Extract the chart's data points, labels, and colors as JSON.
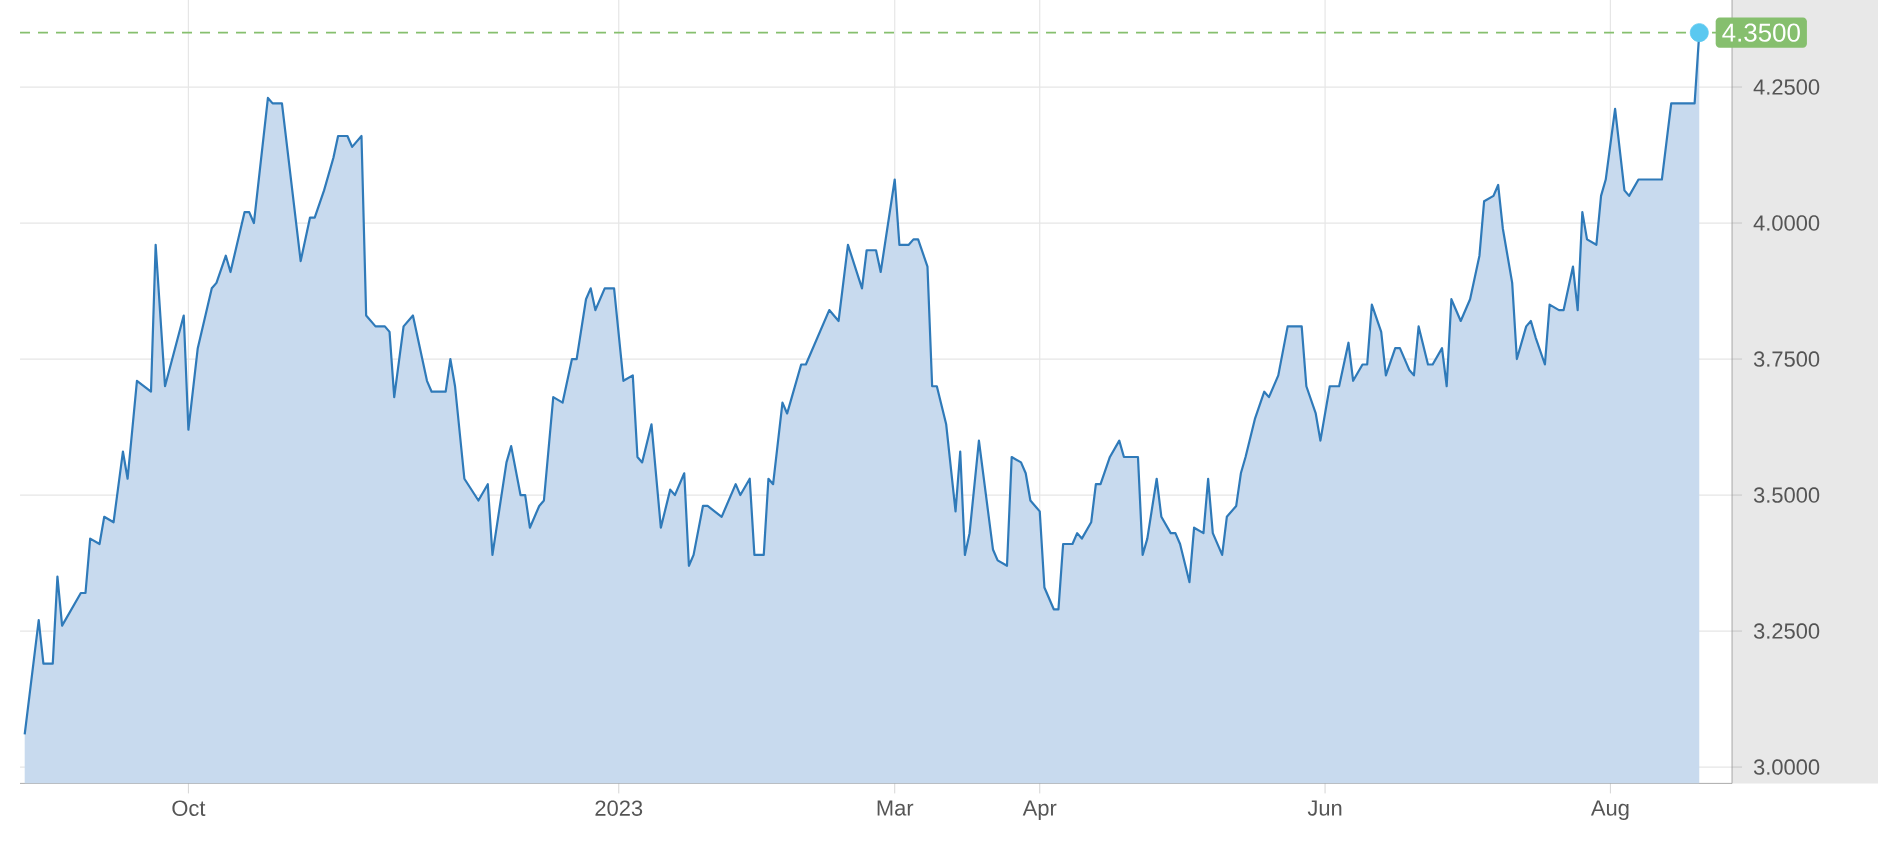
{
  "chart_data": {
    "type": "area",
    "color": "#2f7ab9",
    "x": [
      "2022-08-27",
      "2022-08-28",
      "2022-08-30",
      "2022-08-31",
      "2022-09-02",
      "2022-09-03",
      "2022-09-04",
      "2022-09-08",
      "2022-09-09",
      "2022-09-10",
      "2022-09-12",
      "2022-09-13",
      "2022-09-15",
      "2022-09-17",
      "2022-09-18",
      "2022-09-20",
      "2022-09-23",
      "2022-09-24",
      "2022-09-26",
      "2022-09-30",
      "2022-10-01",
      "2022-10-03",
      "2022-10-06",
      "2022-10-07",
      "2022-10-09",
      "2022-10-10",
      "2022-10-13",
      "2022-10-14",
      "2022-10-15",
      "2022-10-18",
      "2022-10-19",
      "2022-10-21",
      "2022-10-25",
      "2022-10-27",
      "2022-10-28",
      "2022-10-30",
      "2022-11-01",
      "2022-11-02",
      "2022-11-04",
      "2022-11-05",
      "2022-11-07",
      "2022-11-08",
      "2022-11-10",
      "2022-11-12",
      "2022-11-13",
      "2022-11-14",
      "2022-11-16",
      "2022-11-18",
      "2022-11-21",
      "2022-11-22",
      "2022-11-25",
      "2022-11-26",
      "2022-11-27",
      "2022-11-29",
      "2022-12-02",
      "2022-12-04",
      "2022-12-05",
      "2022-12-08",
      "2022-12-09",
      "2022-12-11",
      "2022-12-12",
      "2022-12-13",
      "2022-12-15",
      "2022-12-16",
      "2022-12-18",
      "2022-12-20",
      "2022-12-22",
      "2022-12-23",
      "2022-12-25",
      "2022-12-26",
      "2022-12-27",
      "2022-12-29",
      "2022-12-31",
      "2023-01-02",
      "2023-01-04",
      "2023-01-05",
      "2023-01-06",
      "2023-01-08",
      "2023-01-10",
      "2023-01-12",
      "2023-01-13",
      "2023-01-15",
      "2023-01-16",
      "2023-01-17",
      "2023-01-19",
      "2023-01-20",
      "2023-01-23",
      "2023-01-26",
      "2023-01-27",
      "2023-01-29",
      "2023-01-30",
      "2023-02-01",
      "2023-02-02",
      "2023-02-03",
      "2023-02-05",
      "2023-02-06",
      "2023-02-07",
      "2023-02-09",
      "2023-02-10",
      "2023-02-15",
      "2023-02-17",
      "2023-02-19",
      "2023-02-22",
      "2023-02-23",
      "2023-02-25",
      "2023-02-26",
      "2023-03-01",
      "2023-03-02",
      "2023-03-04",
      "2023-03-05",
      "2023-03-06",
      "2023-03-08",
      "2023-03-09",
      "2023-03-10",
      "2023-03-12",
      "2023-03-14",
      "2023-03-15",
      "2023-03-16",
      "2023-03-17",
      "2023-03-19",
      "2023-03-22",
      "2023-03-23",
      "2023-03-25",
      "2023-03-26",
      "2023-03-28",
      "2023-03-29",
      "2023-03-30",
      "2023-04-01",
      "2023-04-02",
      "2023-04-04",
      "2023-04-05",
      "2023-04-06",
      "2023-04-08",
      "2023-04-09",
      "2023-04-10",
      "2023-04-12",
      "2023-04-13",
      "2023-04-14",
      "2023-04-16",
      "2023-04-18",
      "2023-04-19",
      "2023-04-20",
      "2023-04-22",
      "2023-04-23",
      "2023-04-24",
      "2023-04-26",
      "2023-04-27",
      "2023-04-29",
      "2023-04-30",
      "2023-05-01",
      "2023-05-03",
      "2023-05-04",
      "2023-05-06",
      "2023-05-07",
      "2023-05-08",
      "2023-05-10",
      "2023-05-11",
      "2023-05-13",
      "2023-05-14",
      "2023-05-15",
      "2023-05-17",
      "2023-05-19",
      "2023-05-20",
      "2023-05-22",
      "2023-05-24",
      "2023-05-27",
      "2023-05-28",
      "2023-05-30",
      "2023-05-31",
      "2023-06-02",
      "2023-06-04",
      "2023-06-06",
      "2023-06-07",
      "2023-06-09",
      "2023-06-10",
      "2023-06-11",
      "2023-06-13",
      "2023-06-14",
      "2023-06-16",
      "2023-06-17",
      "2023-06-19",
      "2023-06-20",
      "2023-06-21",
      "2023-06-23",
      "2023-06-24",
      "2023-06-26",
      "2023-06-27",
      "2023-06-28",
      "2023-06-30",
      "2023-07-02",
      "2023-07-04",
      "2023-07-05",
      "2023-07-07",
      "2023-07-08",
      "2023-07-09",
      "2023-07-11",
      "2023-07-12",
      "2023-07-14",
      "2023-07-15",
      "2023-07-16",
      "2023-07-18",
      "2023-07-19",
      "2023-07-21",
      "2023-07-22",
      "2023-07-24",
      "2023-07-25",
      "2023-07-26",
      "2023-07-27",
      "2023-07-29",
      "2023-07-30",
      "2023-07-31",
      "2023-08-02",
      "2023-08-04",
      "2023-08-05",
      "2023-08-07",
      "2023-08-12",
      "2023-08-14",
      "2023-08-19",
      "2023-08-20"
    ],
    "values": [
      3.06,
      3.13,
      3.27,
      3.19,
      3.19,
      3.35,
      3.26,
      3.32,
      3.32,
      3.42,
      3.41,
      3.46,
      3.45,
      3.58,
      3.53,
      3.71,
      3.69,
      3.96,
      3.7,
      3.83,
      3.62,
      3.77,
      3.88,
      3.89,
      3.94,
      3.91,
      4.02,
      4.02,
      4.0,
      4.23,
      4.22,
      4.22,
      3.93,
      4.01,
      4.01,
      4.06,
      4.12,
      4.16,
      4.16,
      4.14,
      4.16,
      3.83,
      3.81,
      3.81,
      3.8,
      3.68,
      3.81,
      3.83,
      3.71,
      3.69,
      3.69,
      3.75,
      3.7,
      3.53,
      3.49,
      3.52,
      3.39,
      3.56,
      3.59,
      3.5,
      3.5,
      3.44,
      3.48,
      3.49,
      3.68,
      3.67,
      3.75,
      3.75,
      3.86,
      3.88,
      3.84,
      3.88,
      3.88,
      3.71,
      3.72,
      3.57,
      3.56,
      3.63,
      3.44,
      3.51,
      3.5,
      3.54,
      3.37,
      3.39,
      3.48,
      3.48,
      3.46,
      3.52,
      3.5,
      3.53,
      3.39,
      3.39,
      3.53,
      3.52,
      3.67,
      3.65,
      3.68,
      3.74,
      3.74,
      3.84,
      3.82,
      3.96,
      3.88,
      3.95,
      3.95,
      3.91,
      4.08,
      3.96,
      3.96,
      3.97,
      3.97,
      3.92,
      3.7,
      3.7,
      3.63,
      3.47,
      3.58,
      3.39,
      3.43,
      3.6,
      3.4,
      3.38,
      3.37,
      3.57,
      3.56,
      3.54,
      3.49,
      3.47,
      3.33,
      3.29,
      3.29,
      3.41,
      3.41,
      3.43,
      3.42,
      3.45,
      3.52,
      3.52,
      3.57,
      3.6,
      3.57,
      3.57,
      3.57,
      3.39,
      3.42,
      3.53,
      3.46,
      3.43,
      3.43,
      3.41,
      3.34,
      3.44,
      3.43,
      3.53,
      3.43,
      3.39,
      3.46,
      3.48,
      3.54,
      3.57,
      3.64,
      3.69,
      3.68,
      3.72,
      3.81,
      3.81,
      3.7,
      3.65,
      3.6,
      3.7,
      3.7,
      3.78,
      3.71,
      3.74,
      3.74,
      3.85,
      3.8,
      3.72,
      3.77,
      3.77,
      3.73,
      3.72,
      3.81,
      3.74,
      3.74,
      3.77,
      3.7,
      3.86,
      3.82,
      3.86,
      3.94,
      4.04,
      4.05,
      4.07,
      3.99,
      3.89,
      3.75,
      3.81,
      3.82,
      3.79,
      3.74,
      3.85,
      3.84,
      3.84,
      3.92,
      3.84,
      4.02,
      3.97,
      3.96,
      4.05,
      4.08,
      4.21,
      4.06,
      4.05,
      4.08,
      4.08,
      4.22,
      4.22,
      4.35
    ],
    "xlim": [
      "2022-08-26",
      "2023-08-27"
    ],
    "xticks": [
      {
        "value": "2022-10-01",
        "label": "Oct"
      },
      {
        "value": "2023-01-01",
        "label": "2023"
      },
      {
        "value": "2023-03-01",
        "label": "Mar"
      },
      {
        "value": "2023-04-01",
        "label": "Apr"
      },
      {
        "value": "2023-06-01",
        "label": "Jun"
      },
      {
        "value": "2023-08-01",
        "label": "Aug"
      }
    ],
    "ylim": [
      2.97,
      4.41
    ],
    "yticks": [
      {
        "value": 3,
        "label": "3.0000"
      },
      {
        "value": 3.25,
        "label": "3.2500"
      },
      {
        "value": 3.5,
        "label": "3.5000"
      },
      {
        "value": 3.75,
        "label": "3.7500"
      },
      {
        "value": 4,
        "label": "4.0000"
      },
      {
        "value": 4.25,
        "label": "4.2500"
      }
    ],
    "grid": true,
    "series": [
      {
        "type": "scatter",
        "color": "#5ac8f0",
        "x": [
          "2023-08-20"
        ],
        "values": [
          4.35
        ]
      }
    ],
    "ref_lines": [
      {
        "axis": "y",
        "value": 4.35,
        "label": "4.3500",
        "color": "#86bf6e",
        "line_style": "dashed"
      }
    ]
  }
}
